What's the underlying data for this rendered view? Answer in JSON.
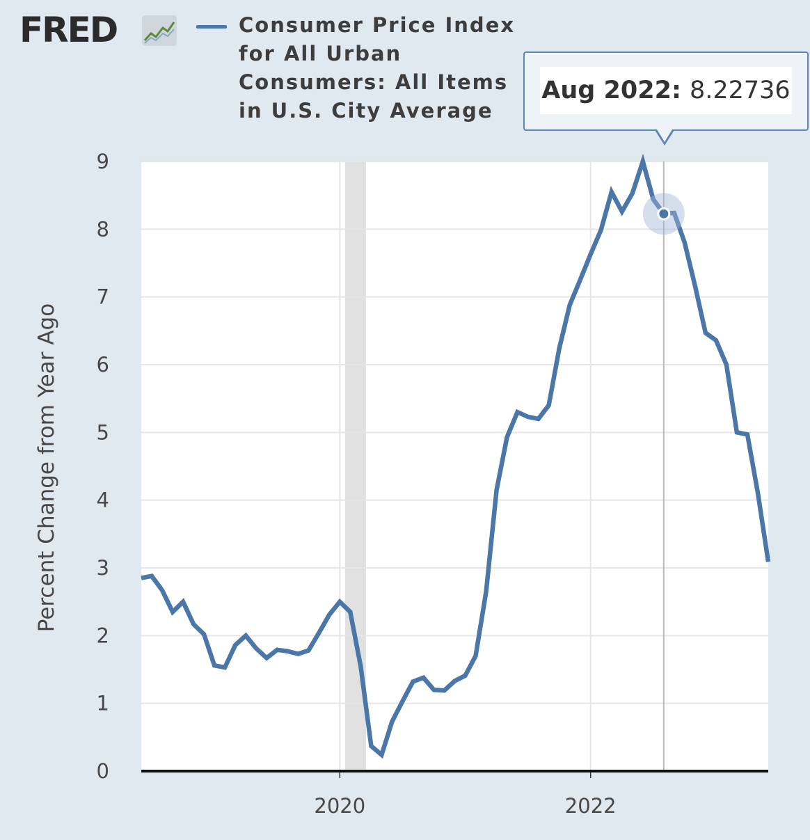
{
  "logo": {
    "text": "FRED"
  },
  "colors": {
    "series": "#4a76a8",
    "background": "#e1e9f0",
    "plot": "#ffffff",
    "recession": "#e1e1e1"
  },
  "tooltip": {
    "date": "Aug 2022:",
    "value": "8.22736"
  },
  "chart_data": {
    "type": "line",
    "title": "",
    "xlabel": "",
    "ylabel": "Percent Change from Year Ago",
    "xlim": [
      "2018-06",
      "2023-06"
    ],
    "ylim": [
      0,
      9
    ],
    "yticks": [
      0,
      1,
      2,
      3,
      4,
      5,
      6,
      7,
      8,
      9
    ],
    "xticks": [
      {
        "label": "2020",
        "at": "2020-01"
      },
      {
        "label": "2022",
        "at": "2022-01"
      }
    ],
    "grid": true,
    "legend_position": "top",
    "recession": {
      "start": "2020-02",
      "end": "2020-04"
    },
    "highlight": {
      "date": "2022-08",
      "value": 8.22736
    },
    "series": [
      {
        "name": "Consumer Price Index for All Urban Consumers: All Items in U.S. City Average",
        "x": [
          "2018-06",
          "2018-07",
          "2018-08",
          "2018-09",
          "2018-10",
          "2018-11",
          "2018-12",
          "2019-01",
          "2019-02",
          "2019-03",
          "2019-04",
          "2019-05",
          "2019-06",
          "2019-07",
          "2019-08",
          "2019-09",
          "2019-10",
          "2019-11",
          "2019-12",
          "2020-01",
          "2020-02",
          "2020-03",
          "2020-04",
          "2020-05",
          "2020-06",
          "2020-07",
          "2020-08",
          "2020-09",
          "2020-10",
          "2020-11",
          "2020-12",
          "2021-01",
          "2021-02",
          "2021-03",
          "2021-04",
          "2021-05",
          "2021-06",
          "2021-07",
          "2021-08",
          "2021-09",
          "2021-10",
          "2021-11",
          "2021-12",
          "2022-01",
          "2022-02",
          "2022-03",
          "2022-04",
          "2022-05",
          "2022-06",
          "2022-07",
          "2022-08",
          "2022-09",
          "2022-10",
          "2022-11",
          "2022-12",
          "2023-01",
          "2023-02",
          "2023-03",
          "2023-04",
          "2023-05",
          "2023-06"
        ],
        "values": [
          2.85,
          2.88,
          2.67,
          2.35,
          2.5,
          2.17,
          2.02,
          1.56,
          1.53,
          1.86,
          2.0,
          1.81,
          1.67,
          1.79,
          1.77,
          1.73,
          1.78,
          2.04,
          2.31,
          2.5,
          2.35,
          1.55,
          0.37,
          0.24,
          0.73,
          1.03,
          1.32,
          1.38,
          1.2,
          1.19,
          1.33,
          1.41,
          1.7,
          2.65,
          4.15,
          4.93,
          5.3,
          5.23,
          5.2,
          5.4,
          6.24,
          6.88,
          7.25,
          7.63,
          7.99,
          8.55,
          8.26,
          8.53,
          9.0,
          8.44,
          8.23,
          8.24,
          7.8,
          7.16,
          6.47,
          6.36,
          6.0,
          5.0,
          4.97,
          4.11,
          3.09
        ]
      }
    ]
  }
}
